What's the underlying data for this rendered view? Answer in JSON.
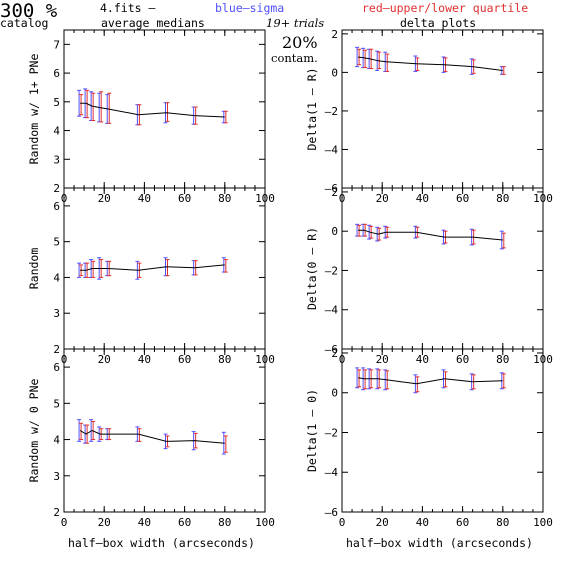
{
  "header": {
    "percent": "300 %",
    "catalog": "catalog",
    "file": "4.fits –",
    "avg_medians": "average medians",
    "blue_sigma": "blue–sigma",
    "red_quartile": "red–upper/lower quartile",
    "trials": "19+ trials",
    "contam_pct": "20%",
    "contam": "contam.",
    "delta_plots": "delta plots"
  },
  "colors": {
    "blue": "#5050ff",
    "red": "#e03030",
    "line": "#000000"
  },
  "chart_data": [
    {
      "type": "line",
      "ylabel": "Random w/ 1+ PNe",
      "xlim": [
        0,
        100
      ],
      "ylim": [
        2,
        7.5
      ],
      "xticks": [
        "0",
        "20",
        "40",
        "60",
        "80",
        "100"
      ],
      "yticks": [
        "2",
        "3",
        "4",
        "5",
        "6",
        "7"
      ],
      "x": [
        8,
        11,
        14,
        18,
        22,
        37,
        51,
        65,
        80
      ],
      "y": [
        4.95,
        4.95,
        4.85,
        4.8,
        4.75,
        4.55,
        4.62,
        4.52,
        4.47
      ],
      "sigma": [
        0.45,
        0.5,
        0.5,
        0.5,
        0.5,
        0.35,
        0.35,
        0.3,
        0.2
      ],
      "q_low": [
        0.4,
        0.5,
        0.5,
        0.5,
        0.5,
        0.35,
        0.3,
        0.3,
        0.2
      ],
      "q_high": [
        0.3,
        0.45,
        0.45,
        0.55,
        0.55,
        0.35,
        0.35,
        0.3,
        0.2
      ]
    },
    {
      "type": "line",
      "ylabel": "Random",
      "xlim": [
        0,
        100
      ],
      "ylim": [
        2,
        6.5
      ],
      "xticks": [
        "0",
        "20",
        "40",
        "60",
        "80",
        "100"
      ],
      "yticks": [
        "2",
        "3",
        "4",
        "5",
        "6"
      ],
      "x": [
        8,
        11,
        14,
        18,
        22,
        37,
        51,
        65,
        80
      ],
      "y": [
        4.2,
        4.2,
        4.25,
        4.25,
        4.25,
        4.2,
        4.3,
        4.27,
        4.35
      ],
      "sigma": [
        0.2,
        0.2,
        0.25,
        0.3,
        0.2,
        0.25,
        0.25,
        0.2,
        0.2
      ],
      "q_low": [
        0.15,
        0.2,
        0.25,
        0.25,
        0.2,
        0.2,
        0.25,
        0.2,
        0.2
      ],
      "q_high": [
        0.15,
        0.2,
        0.2,
        0.25,
        0.2,
        0.2,
        0.2,
        0.2,
        0.15
      ]
    },
    {
      "type": "line",
      "ylabel": "Random w/ 0 PNe",
      "xlim": [
        0,
        100
      ],
      "ylim": [
        2,
        6.5
      ],
      "xticks": [
        "0",
        "20",
        "40",
        "60",
        "80",
        "100"
      ],
      "yticks": [
        "2",
        "3",
        "4",
        "5",
        "6"
      ],
      "x": [
        8,
        11,
        14,
        18,
        22,
        37,
        51,
        65,
        80
      ],
      "y": [
        4.25,
        4.15,
        4.25,
        4.15,
        4.15,
        4.15,
        3.95,
        3.97,
        3.9
      ],
      "sigma": [
        0.3,
        0.25,
        0.3,
        0.2,
        0.15,
        0.2,
        0.2,
        0.25,
        0.3
      ],
      "q_low": [
        0.25,
        0.25,
        0.25,
        0.15,
        0.15,
        0.2,
        0.15,
        0.2,
        0.25
      ],
      "q_high": [
        0.2,
        0.25,
        0.25,
        0.15,
        0.15,
        0.15,
        0.15,
        0.2,
        0.2
      ]
    },
    {
      "type": "line",
      "ylabel": "Delta(1 – R)",
      "xlim": [
        0,
        100
      ],
      "ylim": [
        -6,
        2.2
      ],
      "xticks": [
        "0",
        "20",
        "40",
        "60",
        "80",
        "100"
      ],
      "yticks": [
        "–6",
        "–4",
        "–2",
        "0",
        "2"
      ],
      "x": [
        8,
        11,
        14,
        18,
        22,
        37,
        51,
        65,
        80
      ],
      "y": [
        0.8,
        0.75,
        0.7,
        0.6,
        0.55,
        0.45,
        0.4,
        0.3,
        0.1
      ],
      "sigma": [
        0.5,
        0.5,
        0.5,
        0.5,
        0.5,
        0.4,
        0.4,
        0.4,
        0.2
      ],
      "q_low": [
        0.4,
        0.5,
        0.5,
        0.4,
        0.5,
        0.35,
        0.35,
        0.35,
        0.2
      ],
      "q_high": [
        0.4,
        0.4,
        0.5,
        0.45,
        0.4,
        0.3,
        0.35,
        0.35,
        0.2
      ]
    },
    {
      "type": "line",
      "ylabel": "Delta(0 – R)",
      "xlim": [
        0,
        100
      ],
      "ylim": [
        -6,
        2.2
      ],
      "xticks": [
        "0",
        "20",
        "40",
        "60",
        "80",
        "100"
      ],
      "yticks": [
        "–6",
        "–4",
        "–2",
        "0",
        "2"
      ],
      "x": [
        8,
        11,
        14,
        18,
        22,
        37,
        51,
        65,
        80
      ],
      "y": [
        0.05,
        0.05,
        -0.05,
        -0.15,
        -0.05,
        -0.05,
        -0.3,
        -0.3,
        -0.45
      ],
      "sigma": [
        0.3,
        0.3,
        0.35,
        0.35,
        0.3,
        0.3,
        0.35,
        0.4,
        0.45
      ],
      "q_low": [
        0.3,
        0.3,
        0.3,
        0.3,
        0.25,
        0.25,
        0.3,
        0.35,
        0.4
      ],
      "q_high": [
        0.25,
        0.3,
        0.3,
        0.3,
        0.25,
        0.25,
        0.3,
        0.35,
        0.35
      ]
    },
    {
      "type": "line",
      "ylabel": "Delta(1 – 0)",
      "xlim": [
        0,
        100
      ],
      "ylim": [
        -6,
        2.2
      ],
      "xticks": [
        "0",
        "20",
        "40",
        "60",
        "80",
        "100"
      ],
      "yticks": [
        "–6",
        "–4",
        "–2",
        "0",
        "2"
      ],
      "xlabel": "half–box width (arcseconds)",
      "x": [
        8,
        11,
        14,
        18,
        22,
        37,
        51,
        65,
        80
      ],
      "y": [
        0.75,
        0.7,
        0.7,
        0.7,
        0.65,
        0.45,
        0.7,
        0.55,
        0.6
      ],
      "sigma": [
        0.5,
        0.55,
        0.5,
        0.5,
        0.5,
        0.45,
        0.45,
        0.4,
        0.4
      ],
      "q_low": [
        0.45,
        0.5,
        0.45,
        0.45,
        0.45,
        0.4,
        0.4,
        0.35,
        0.35
      ],
      "q_high": [
        0.4,
        0.45,
        0.45,
        0.45,
        0.45,
        0.35,
        0.35,
        0.35,
        0.35
      ]
    }
  ],
  "xlabel_left": "half–box width (arcseconds)",
  "xlabel_right": "half–box width (arcseconds)"
}
